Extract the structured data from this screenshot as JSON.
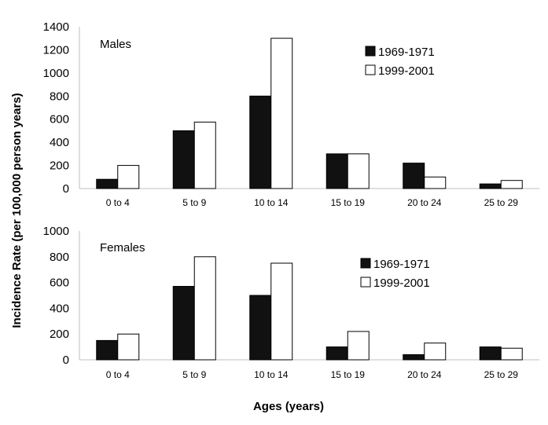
{
  "shared": {
    "ylabel": "Incidence Rate (per 100,000 person years)",
    "xlabel": "Ages (years)"
  },
  "chart_data": [
    {
      "type": "bar",
      "title": "Males",
      "categories": [
        "0 to 4",
        "5 to 9",
        "10 to 14",
        "15 to 19",
        "20 to 24",
        "25 to 29"
      ],
      "series": [
        {
          "name": "1969-1971",
          "values": [
            80,
            500,
            800,
            300,
            220,
            40
          ],
          "color": "#111111"
        },
        {
          "name": "1999-2001",
          "values": [
            200,
            575,
            1300,
            300,
            100,
            70
          ],
          "color": "#ffffff"
        }
      ],
      "ylim": [
        0,
        1400
      ],
      "yticks": [
        0,
        200,
        400,
        600,
        800,
        1000,
        1200,
        1400
      ],
      "legend": "top-right",
      "grid": false
    },
    {
      "type": "bar",
      "title": "Females",
      "categories": [
        "0 to 4",
        "5 to 9",
        "10 to 14",
        "15 to 19",
        "20 to 24",
        "25 to 29"
      ],
      "series": [
        {
          "name": "1969-1971",
          "values": [
            150,
            570,
            500,
            100,
            40,
            100
          ],
          "color": "#111111"
        },
        {
          "name": "1999-2001",
          "values": [
            200,
            800,
            750,
            220,
            130,
            90
          ],
          "color": "#ffffff"
        }
      ],
      "ylim": [
        0,
        1000
      ],
      "yticks": [
        0,
        200,
        400,
        600,
        800,
        1000
      ],
      "legend": "top-right",
      "grid": false
    }
  ]
}
